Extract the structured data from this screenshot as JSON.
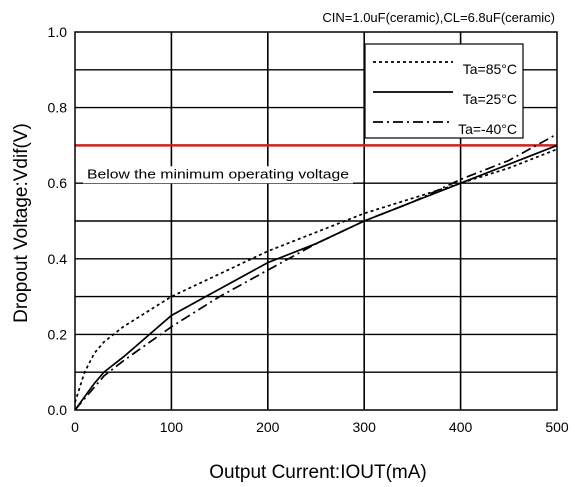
{
  "chart_data": {
    "type": "line",
    "title": "",
    "subtitle": "CIN=1.0uF(ceramic),CL=6.8uF(ceramic)",
    "xlabel": "Output Current:IOUT(mA)",
    "ylabel": "Dropout Voltage:Vdif(V)",
    "xlim": [
      0,
      500
    ],
    "ylim": [
      0,
      1.0
    ],
    "x_ticks": [
      "0",
      "100",
      "200",
      "300",
      "400",
      "500"
    ],
    "y_ticks": [
      "0.0",
      "0.2",
      "0.4",
      "0.6",
      "0.8",
      "1.0"
    ],
    "grid": true,
    "legend_position": "top-right",
    "series": [
      {
        "name": "Ta=85°C",
        "dash": "dotted",
        "color": "#000000",
        "x": [
          0,
          5,
          10,
          20,
          30,
          50,
          100,
          150,
          200,
          250,
          300,
          350,
          400,
          450,
          500
        ],
        "y": [
          0.02,
          0.06,
          0.1,
          0.15,
          0.18,
          0.22,
          0.3,
          0.36,
          0.42,
          0.47,
          0.52,
          0.56,
          0.6,
          0.64,
          0.69
        ]
      },
      {
        "name": "Ta=25°C",
        "dash": "solid",
        "color": "#000000",
        "x": [
          0,
          10,
          20,
          30,
          50,
          100,
          150,
          200,
          250,
          300,
          350,
          400,
          450,
          500
        ],
        "y": [
          0.0,
          0.035,
          0.07,
          0.1,
          0.14,
          0.25,
          0.32,
          0.39,
          0.44,
          0.5,
          0.55,
          0.6,
          0.65,
          0.7
        ]
      },
      {
        "name": "Ta=-40°C",
        "dash": "dashdot",
        "color": "#000000",
        "x": [
          0,
          10,
          20,
          30,
          50,
          100,
          150,
          200,
          250,
          300,
          350,
          400,
          450,
          500
        ],
        "y": [
          0.0,
          0.03,
          0.06,
          0.09,
          0.13,
          0.22,
          0.3,
          0.37,
          0.44,
          0.5,
          0.55,
          0.61,
          0.66,
          0.73
        ]
      }
    ],
    "reference_line": {
      "y": 0.7,
      "color": "#cc2222",
      "label": "Below the minimum operating voltage"
    }
  }
}
